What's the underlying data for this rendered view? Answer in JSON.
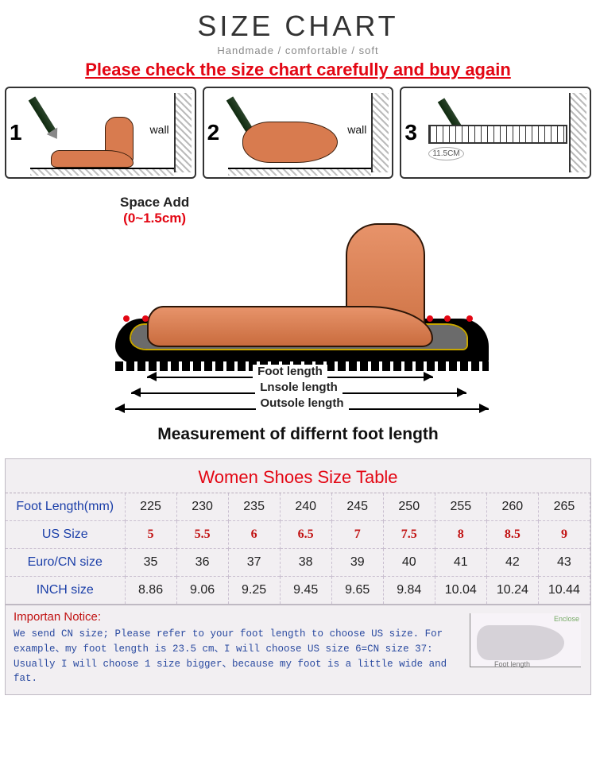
{
  "header": {
    "title": "SIZE CHART",
    "subtitle": "Handmade / comfortable / soft",
    "warning": "Please check the size chart carefully and buy again"
  },
  "steps": {
    "wall_label": "wall",
    "s1_num": "1",
    "s2_num": "2",
    "s3_num": "3",
    "s3_ruler_caption": "11.5CM"
  },
  "diagram": {
    "space_label": "Space Add",
    "space_range": "(0~1.5cm)",
    "dim_foot": "Foot length",
    "dim_insole": "Lnsole length",
    "dim_outsole": "Outsole length",
    "caption": "Measurement of differnt foot length"
  },
  "size_table": {
    "title": "Women Shoes Size Table",
    "rows": [
      {
        "label": "Foot Length(mm)",
        "vals": [
          "225",
          "230",
          "235",
          "240",
          "245",
          "250",
          "255",
          "260",
          "265"
        ],
        "cls": "row-fl"
      },
      {
        "label": "US Size",
        "vals": [
          "5",
          "5.5",
          "6",
          "6.5",
          "7",
          "7.5",
          "8",
          "8.5",
          "9"
        ],
        "cls": "row-us"
      },
      {
        "label": "Euro/CN size",
        "vals": [
          "35",
          "36",
          "37",
          "38",
          "39",
          "40",
          "41",
          "42",
          "43"
        ],
        "cls": "row-eu"
      },
      {
        "label": "INCH size",
        "vals": [
          "8.86",
          "9.06",
          "9.25",
          "9.45",
          "9.65",
          "9.84",
          "10.04",
          "10.24",
          "10.44"
        ],
        "cls": "row-in"
      }
    ]
  },
  "notice": {
    "title": "Importan Notice:",
    "text": "We send CN size; Please refer to your foot length to choose US size. For example、my foot length is 23.5 cm、I will choose US size 6=CN size 37: Usually I will choose 1 size bigger、because my foot is a little wide and fat.",
    "ill_cap1": "Enclose",
    "ill_cap2": "Foot length"
  },
  "colors": {
    "accent_red": "#e30613",
    "table_bg": "#f2eff2",
    "label_blue": "#1a3ea8",
    "us_red": "#c11212",
    "foot_skin": "#d87b4f"
  }
}
